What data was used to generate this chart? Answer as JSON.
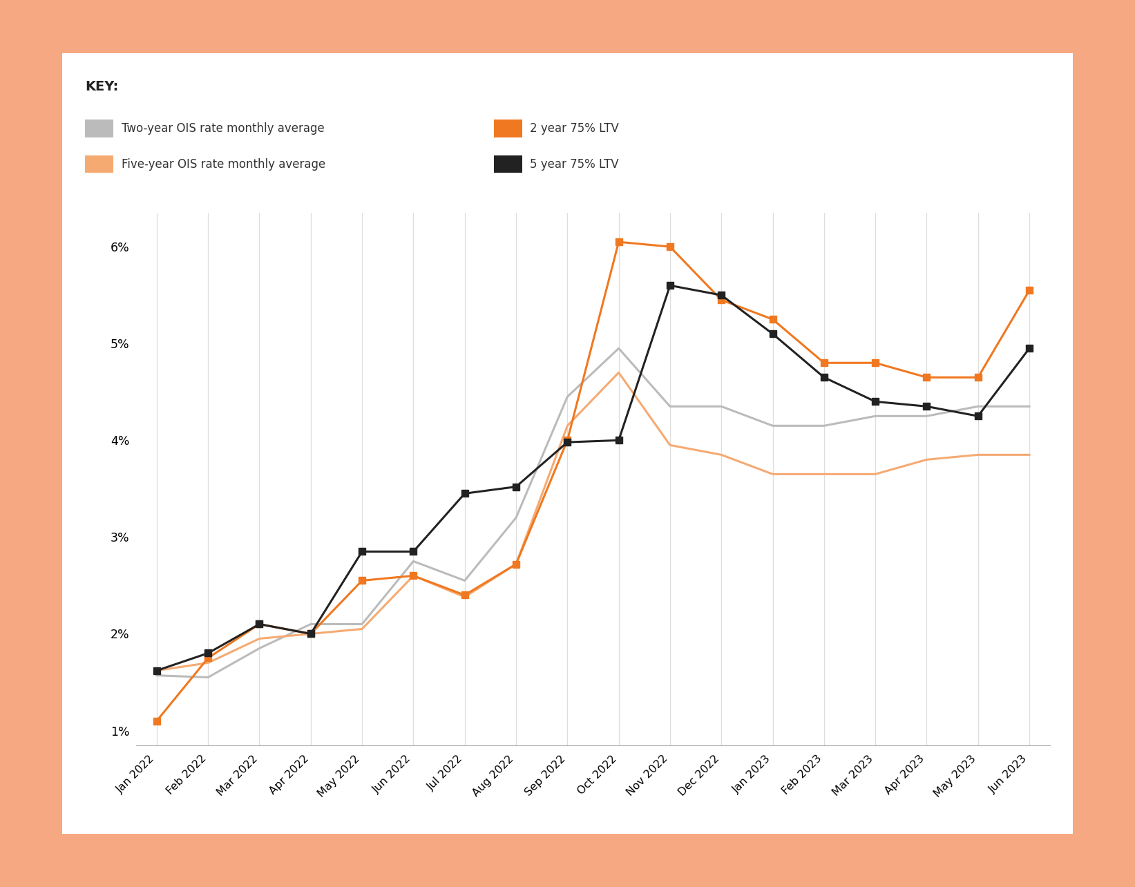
{
  "months": [
    "Jan 2022",
    "Feb 2022",
    "Mar 2022",
    "Apr 2022",
    "May 2022",
    "Jun 2022",
    "Jul 2022",
    "Aug 2022",
    "Sep 2022",
    "Oct 2022",
    "Nov 2022",
    "Dec 2022",
    "Jan 2023",
    "Feb 2023",
    "Mar 2023",
    "Apr 2023",
    "May 2023",
    "Jun 2023"
  ],
  "two_year_ois": [
    1.57,
    1.55,
    1.85,
    2.1,
    2.1,
    2.75,
    2.55,
    3.2,
    4.45,
    4.95,
    4.35,
    4.35,
    4.15,
    4.15,
    4.25,
    4.25,
    4.35,
    4.35
  ],
  "five_year_ois": [
    1.62,
    1.7,
    1.95,
    2.0,
    2.05,
    2.6,
    2.38,
    2.72,
    4.15,
    4.7,
    3.95,
    3.85,
    3.65,
    3.65,
    3.65,
    3.8,
    3.85,
    3.85
  ],
  "ltv_2yr": [
    1.1,
    1.75,
    2.1,
    2.0,
    2.55,
    2.6,
    2.4,
    2.72,
    4.0,
    6.05,
    6.0,
    5.45,
    5.25,
    4.8,
    4.8,
    4.65,
    4.65,
    5.55
  ],
  "ltv_5yr": [
    1.62,
    1.8,
    2.1,
    2.0,
    2.85,
    2.85,
    3.45,
    3.52,
    3.98,
    4.0,
    5.6,
    5.5,
    5.1,
    4.65,
    4.4,
    4.35,
    4.25,
    4.95
  ],
  "five_year_ois_color": "#F5AA72",
  "two_year_ois_color": "#BBBBBB",
  "ltv_2yr_color": "#F07820",
  "ltv_5yr_color": "#222222",
  "background_color": "#FFFFFF",
  "border_color": "#F5A882",
  "ylim_low": 0.85,
  "ylim_high": 6.35,
  "yticks": [
    1,
    2,
    3,
    4,
    5,
    6
  ],
  "ytick_labels": [
    "1%",
    "2%",
    "3%",
    "4%",
    "5%",
    "6%"
  ],
  "key_title": "KEY:",
  "legend_two_ois": "Two-year OIS rate monthly average",
  "legend_five_ois": "Five-year OIS rate monthly average",
  "legend_2ltv": "2 year 75% LTV",
  "legend_5ltv": "5 year 75% LTV"
}
